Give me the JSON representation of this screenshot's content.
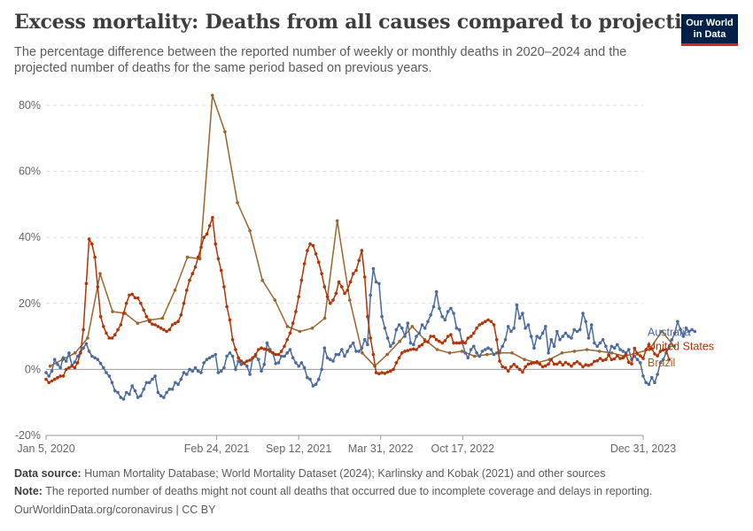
{
  "header": {
    "title": "Excess mortality: Deaths from all causes compared to projection",
    "subtitle": "The percentage difference between the reported number of weekly or monthly deaths in 2020–2024 and the projected number of deaths for the same period based on previous years.",
    "logo_line1": "Our World",
    "logo_line2": "in Data"
  },
  "footer": {
    "source_label": "Data source:",
    "source_text": "Human Mortality Database; World Mortality Dataset (2024); Karlinsky and Kobak (2021) and other sources",
    "note_label": "Note:",
    "note_text": "The reported number of deaths might not count all deaths that occurred due to incomplete coverage and delays in reporting.",
    "credit": "OurWorldinData.org/coronavirus | CC BY"
  },
  "colors": {
    "Australia": "#4c6a9c",
    "United States": "#b13507",
    "Brazil": "#9a652e"
  },
  "chart_data": {
    "type": "line",
    "title": "Excess mortality: Deaths from all causes compared to projection",
    "ylabel": "",
    "xlabel": "",
    "ylim": [
      -20,
      80
    ],
    "yticks": [
      -20,
      0,
      20,
      40,
      60,
      80
    ],
    "ytick_labels": [
      "-20%",
      "0%",
      "20%",
      "40%",
      "60%",
      "80%"
    ],
    "xlim": [
      "2020-01-05",
      "2023-12-31"
    ],
    "xticks": [
      {
        "date": "2020-01-05",
        "label": "Jan 5, 2020"
      },
      {
        "date": "2021-02-24",
        "label": "Feb 24, 2021"
      },
      {
        "date": "2021-09-12",
        "label": "Sep 12, 2021"
      },
      {
        "date": "2022-03-31",
        "label": "Mar 31, 2022"
      },
      {
        "date": "2022-10-17",
        "label": "Oct 17, 2022"
      },
      {
        "date": "2023-12-31",
        "label": "Dec 31, 2023"
      }
    ],
    "series": [
      {
        "name": "United States",
        "frequency": "weekly",
        "start": "2020-01-05",
        "values": [
          -3,
          -4,
          -3.5,
          -3,
          -2.5,
          -2,
          -2,
          0,
          0.5,
          1,
          0.5,
          2,
          5,
          12,
          26,
          39.5,
          38,
          34,
          25,
          16,
          13,
          11,
          9.5,
          9.5,
          10.5,
          12,
          13.5,
          17,
          20,
          22.5,
          22.8,
          21.7,
          21.6,
          20,
          18,
          16,
          14.5,
          13.7,
          13.5,
          13,
          12.5,
          12,
          11.5,
          12,
          13.5,
          14,
          14.5,
          16.5,
          20,
          24,
          27,
          29,
          31,
          34,
          37,
          40,
          41,
          43.5,
          46,
          38,
          33.5,
          30,
          25,
          19,
          15,
          9,
          6,
          3.5,
          2.5,
          1.8,
          2.5,
          2.8,
          3.5,
          4.5,
          6,
          6.5,
          6.2,
          6,
          5.5,
          5,
          4.5,
          4.5,
          5.5,
          7,
          9,
          11,
          14,
          17.5,
          22,
          27,
          32,
          36,
          38,
          37.5,
          35,
          32.5,
          29,
          25,
          22,
          20,
          21,
          23,
          26.5,
          25,
          23,
          24,
          26.5,
          29,
          30,
          33,
          36,
          28,
          16,
          9.5,
          4.5,
          -1,
          -1.3,
          -1,
          -1.2,
          -0.8,
          -0.5,
          0,
          2,
          3.5,
          5,
          5.5,
          5.7,
          6,
          6.2,
          6,
          7,
          7.5,
          8.5,
          8.3,
          10,
          10,
          9,
          8.5,
          8,
          8.7,
          10,
          10.5,
          8,
          8,
          8,
          8.5,
          8,
          9.5,
          10,
          11,
          12.5,
          13.5,
          14,
          14.5,
          15,
          14.5,
          13.5,
          9,
          2.5,
          0.8,
          0.5,
          -0.5,
          0.8,
          1.5,
          0.8,
          0,
          -0.8,
          0.8,
          1.6,
          1.8,
          2,
          2.3,
          1.6,
          0.8,
          1.1,
          1.6,
          3,
          1.6,
          1.6,
          2.2,
          1.4,
          2.1,
          1.6,
          1,
          1.8,
          2.3,
          1.7,
          0.8,
          1.4,
          1.2,
          1.5,
          2.4,
          2.6,
          3.3,
          2.7,
          3,
          4.3,
          3,
          3.2,
          4.1,
          3.3,
          3.5,
          4.5,
          2.2,
          1.7,
          6.4,
          4.7,
          4.1,
          3.3,
          6,
          7.5,
          6.3,
          4.7,
          4.1,
          5.5,
          5.9,
          6,
          3
        ]
      },
      {
        "name": "Australia",
        "frequency": "weekly",
        "start": "2020-01-05",
        "values": [
          -1,
          -2,
          -0.5,
          3,
          1.5,
          0.5,
          3.5,
          2.5,
          5,
          1.2,
          2.2,
          4,
          5.2,
          6.5,
          7.8,
          5.5,
          4,
          3.5,
          3,
          1.8,
          0.5,
          -1,
          -2,
          -4,
          -6.5,
          -7,
          -8.5,
          -9,
          -7,
          -7.5,
          -5,
          -6.5,
          -8.5,
          -8,
          -6,
          -4,
          -4,
          -3,
          -2,
          -7,
          -8,
          -8.5,
          -7,
          -6,
          -6,
          -4,
          -4.5,
          -3,
          -1,
          -1.5,
          0,
          -0.5,
          0.5,
          -0.5,
          -1,
          2,
          3,
          3.5,
          4,
          4.5,
          -1,
          -0.5,
          0.5,
          4,
          5,
          4,
          0,
          2.5,
          1.5,
          2,
          1,
          -1.5,
          3.5,
          4,
          3,
          -0.5,
          1.5,
          8,
          6,
          5,
          1.8,
          2,
          4,
          4,
          5,
          6,
          3.5,
          2,
          1,
          2,
          0.5,
          -2.5,
          -3,
          -5,
          -4.5,
          -3,
          0,
          6.5,
          3.5,
          3,
          2.5,
          4.5,
          4.5,
          6,
          4,
          5.5,
          7,
          8,
          5.5,
          5.5,
          6.5,
          9,
          7.5,
          22.5,
          30.5,
          26.5,
          26,
          16,
          12.5,
          9.5,
          7,
          8,
          12,
          13.5,
          12.5,
          10,
          14,
          8,
          7.5,
          10,
          11,
          13.5,
          12.5,
          14.5,
          16.5,
          19,
          23.5,
          18.5,
          16,
          15,
          17.5,
          18.5,
          17,
          12.5,
          12,
          8,
          5,
          3.5,
          6,
          7,
          5,
          4,
          5.5,
          6,
          6.5,
          6,
          4.5,
          5,
          5.5,
          7,
          9,
          13,
          11.5,
          12.5,
          19.5,
          15.5,
          17,
          12.5,
          13.5,
          10,
          6.5,
          10,
          9.5,
          11,
          13,
          5,
          9,
          7,
          11.5,
          9,
          10,
          11,
          10,
          9.5,
          12,
          11.5,
          12,
          17,
          14.5,
          9.5,
          13.5,
          8,
          7,
          8,
          9,
          7,
          4.5,
          7,
          6.5,
          7.5,
          6,
          5.5,
          5,
          6,
          3,
          4,
          3,
          2,
          -2,
          -4,
          -4.5,
          -2.5,
          -4,
          -1.5,
          2,
          3,
          5,
          6.5,
          9,
          11,
          14.5,
          12,
          10,
          12.5,
          11.5,
          12,
          11.5
        ]
      },
      {
        "name": "Brazil",
        "frequency": "monthly",
        "start": "2020-01-15",
        "values": [
          1,
          3,
          5,
          9.5,
          29,
          17.5,
          17,
          14,
          15,
          15.5,
          24,
          34,
          33.5,
          83,
          72,
          50.5,
          42,
          27,
          21,
          13,
          11.5,
          12.5,
          15.5,
          45,
          21,
          5,
          1,
          4.5,
          8.5,
          13,
          9,
          6,
          5,
          5.5,
          4,
          4.5,
          5,
          5,
          3,
          2,
          3,
          5,
          5.5,
          6,
          5.5,
          5,
          4,
          5,
          6,
          11.5,
          7
        ]
      }
    ]
  }
}
